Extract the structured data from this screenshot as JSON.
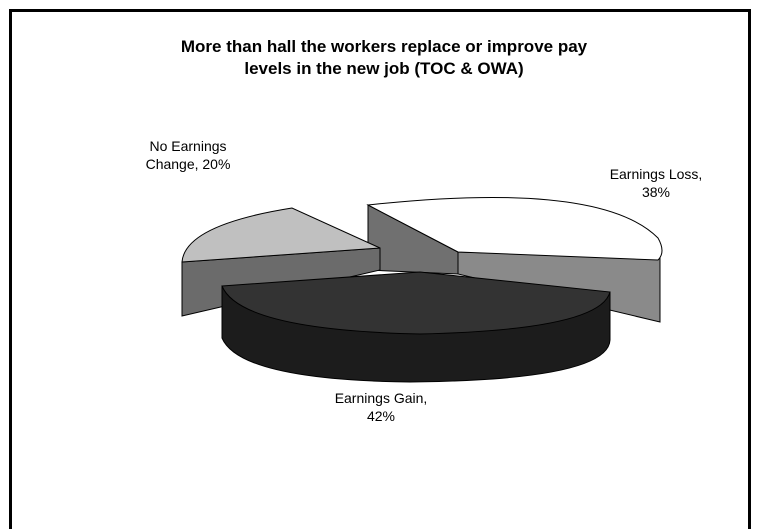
{
  "chart_data": {
    "type": "pie",
    "title_lines": [
      "More than hall the workers replace or improve pay",
      "levels in the new job (TOC & OWA)"
    ],
    "slices": [
      {
        "label_line1": "Earnings Loss,",
        "label_line2": "38%",
        "value": 38,
        "color": "#ffffff",
        "side_color": "#7f7f7f"
      },
      {
        "label_line1": "Earnings Gain,",
        "label_line2": "42%",
        "value": 42,
        "color": "#333333",
        "side_color": "#1a1a1a"
      },
      {
        "label_line1": "No Earnings",
        "label_line2": "Change, 20%",
        "value": 20,
        "color": "#c0c0c0",
        "side_color": "#666666"
      }
    ],
    "legend": "none",
    "grid": false
  }
}
